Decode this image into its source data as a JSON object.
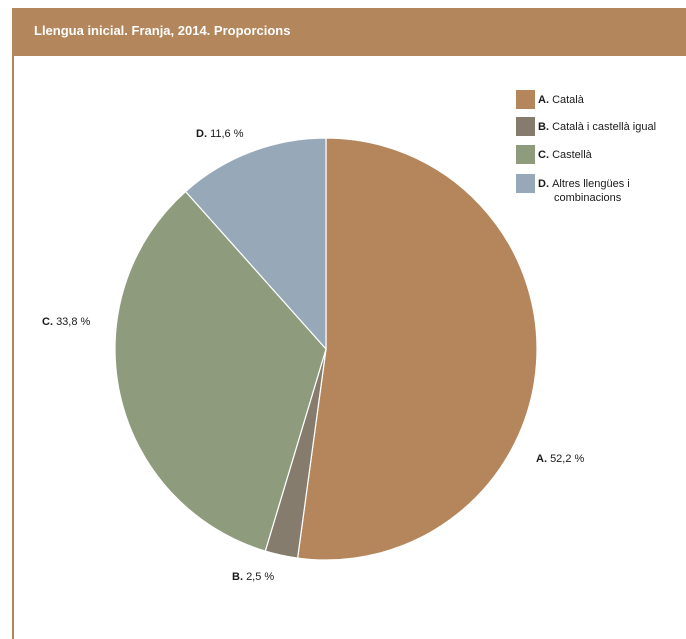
{
  "title": "Llengua inicial. Franja, 2014. Proporcions",
  "colors": {
    "header": "#b4865b",
    "A": "#b5865b",
    "B": "#857c6d",
    "C": "#8e9b7d",
    "D": "#97a9b9"
  },
  "chart_data": {
    "type": "pie",
    "title": "Llengua inicial. Franja, 2014. Proporcions",
    "legend_position": "top-right",
    "slices": [
      {
        "key": "A.",
        "name": "Català",
        "value": 52.2,
        "value_label": "52,2 %",
        "color": "#b5865b"
      },
      {
        "key": "B.",
        "name": "Català i castellà igual",
        "value": 2.5,
        "value_label": "2,5 %",
        "color": "#857c6d"
      },
      {
        "key": "C.",
        "name": "Castellà",
        "value": 33.8,
        "value_label": "33,8 %",
        "color": "#8e9b7d"
      },
      {
        "key": "D.",
        "name": "Altres llengües i combinacions",
        "value": 11.6,
        "value_label": "11,6 %",
        "color": "#97a9b9"
      }
    ],
    "legend_lines": [
      [
        "Català"
      ],
      [
        "Català i castellà igual"
      ],
      [
        "Castellà"
      ],
      [
        "Altres llengües i",
        "combinacions"
      ]
    ]
  }
}
